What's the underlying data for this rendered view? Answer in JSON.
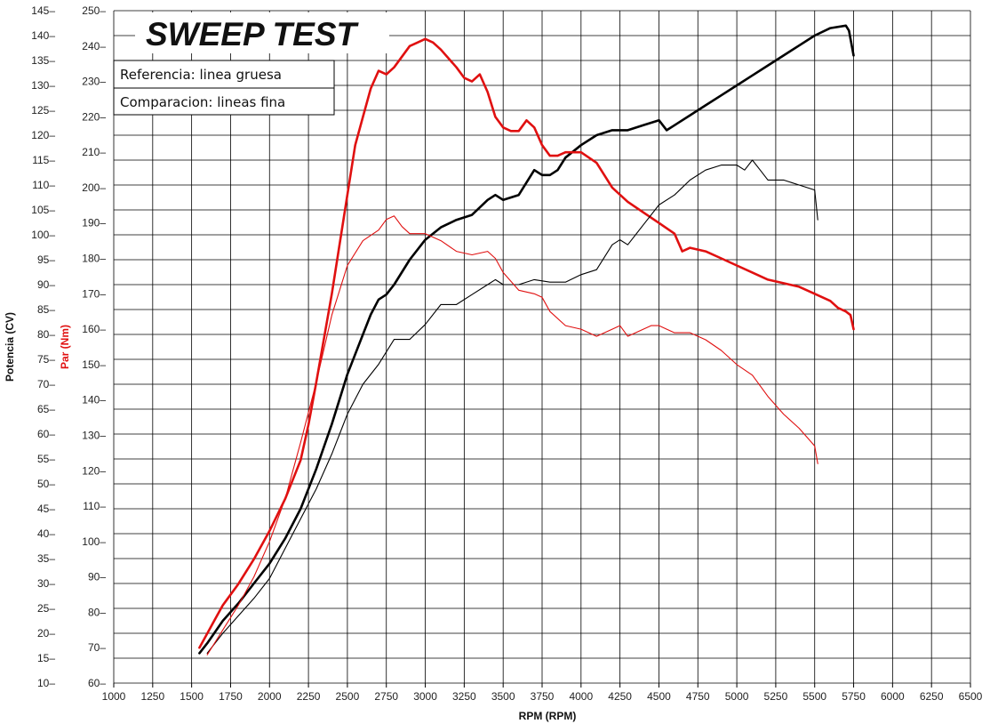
{
  "chart_data": {
    "type": "line",
    "title": "SWEEP TEST",
    "xlabel": "RPM (RPM)",
    "y_power_label": "Potencia (CV)",
    "y_torque_label": "Par (Nm)",
    "xlim": [
      1000,
      6500
    ],
    "x_ticks": [
      "1000",
      "1250",
      "1500",
      "1750",
      "2000",
      "2250",
      "2500",
      "2750",
      "3000",
      "3250",
      "3500",
      "3750",
      "4000",
      "4250",
      "4500",
      "4750",
      "5000",
      "5250",
      "5500",
      "5750",
      "6000",
      "6250",
      "6500"
    ],
    "y_power_lim": [
      10,
      145
    ],
    "y_power_ticks": [
      "10",
      "15",
      "20",
      "25",
      "30",
      "35",
      "40",
      "45",
      "50",
      "55",
      "60",
      "65",
      "70",
      "75",
      "80",
      "85",
      "90",
      "95",
      "100",
      "105",
      "110",
      "115",
      "120",
      "125",
      "130",
      "135",
      "140",
      "145"
    ],
    "y_torque_lim": [
      60,
      250
    ],
    "y_torque_ticks": [
      "60",
      "70",
      "80",
      "90",
      "100",
      "110",
      "120",
      "130",
      "140",
      "150",
      "160",
      "170",
      "180",
      "190",
      "200",
      "210",
      "220",
      "230",
      "240",
      "250"
    ],
    "legend": [
      "Referencia: linea gruesa",
      "Comparacion: lineas fina"
    ],
    "grid": true,
    "colors": {
      "power": "#000000",
      "torque": "#e01010",
      "grid": "#000000"
    },
    "series": [
      {
        "name": "Referencia: linea gruesa",
        "quantity": "power",
        "axis": "power",
        "weight": "thick",
        "x": [
          1550,
          1600,
          1700,
          1800,
          1900,
          2000,
          2100,
          2200,
          2300,
          2400,
          2500,
          2600,
          2650,
          2700,
          2750,
          2800,
          2900,
          3000,
          3100,
          3200,
          3300,
          3400,
          3450,
          3500,
          3600,
          3700,
          3750,
          3800,
          3850,
          3900,
          4000,
          4100,
          4200,
          4300,
          4400,
          4500,
          4550,
          4600,
          4700,
          4800,
          4900,
          5000,
          5100,
          5200,
          5300,
          5400,
          5500,
          5600,
          5700,
          5720,
          5750
        ],
        "y": [
          16,
          18,
          22.5,
          26,
          30,
          34,
          39,
          45,
          53,
          62,
          72,
          80,
          84,
          87,
          88,
          90,
          95,
          99,
          101.5,
          103,
          104,
          107,
          108,
          107,
          108,
          113,
          112,
          112,
          113,
          115.5,
          118,
          120,
          121,
          121,
          122,
          123,
          121,
          122,
          124,
          126,
          128,
          130,
          132,
          134,
          136,
          138,
          140,
          141.5,
          142,
          141,
          136
        ]
      },
      {
        "name": "Referencia: linea gruesa",
        "quantity": "torque",
        "axis": "torque",
        "weight": "thick",
        "x": [
          1550,
          1600,
          1650,
          1700,
          1800,
          1900,
          2000,
          2100,
          2200,
          2250,
          2300,
          2400,
          2500,
          2550,
          2600,
          2650,
          2700,
          2750,
          2800,
          2850,
          2900,
          2950,
          3000,
          3050,
          3100,
          3200,
          3250,
          3300,
          3350,
          3400,
          3450,
          3500,
          3550,
          3600,
          3650,
          3700,
          3750,
          3800,
          3850,
          3900,
          4000,
          4100,
          4200,
          4300,
          4400,
          4500,
          4600,
          4650,
          4700,
          4800,
          4900,
          5000,
          5100,
          5200,
          5300,
          5400,
          5500,
          5600,
          5650,
          5700,
          5730,
          5750
        ],
        "y": [
          70,
          74,
          78,
          82,
          88,
          95,
          103,
          112,
          123,
          133,
          145,
          170,
          198,
          212,
          220,
          228,
          233,
          232,
          234,
          237,
          240,
          241,
          242,
          241,
          239,
          234,
          231,
          230,
          232,
          227,
          220,
          217,
          216,
          216,
          219,
          217,
          212,
          209,
          209,
          210,
          210,
          207,
          200,
          196,
          193,
          190,
          187,
          182,
          183,
          182,
          180,
          178,
          176,
          174,
          173,
          172,
          170,
          168,
          166,
          165,
          164,
          160
        ]
      },
      {
        "name": "Comparacion: lineas fina",
        "quantity": "power",
        "axis": "power",
        "weight": "thin",
        "x": [
          1600,
          1700,
          1800,
          1900,
          2000,
          2100,
          2200,
          2300,
          2400,
          2500,
          2600,
          2700,
          2800,
          2900,
          3000,
          3100,
          3200,
          3300,
          3400,
          3450,
          3500,
          3600,
          3700,
          3800,
          3900,
          4000,
          4100,
          4200,
          4250,
          4300,
          4400,
          4500,
          4600,
          4700,
          4800,
          4900,
          5000,
          5050,
          5100,
          5150,
          5200,
          5250,
          5300,
          5400,
          5500,
          5520
        ],
        "y": [
          16,
          20,
          23.5,
          27,
          31,
          37,
          43,
          49,
          56,
          64,
          70,
          74,
          79,
          79,
          82,
          86,
          86,
          88,
          90,
          91,
          90,
          90,
          91,
          90.5,
          90.5,
          92,
          93,
          98,
          99,
          98,
          102,
          106,
          108,
          111,
          113,
          114,
          114,
          113,
          115,
          113,
          111,
          111,
          111,
          110,
          109,
          103
        ]
      },
      {
        "name": "Comparacion: lineas fina",
        "quantity": "torque",
        "axis": "torque",
        "weight": "thin",
        "x": [
          1600,
          1700,
          1800,
          1900,
          2000,
          2100,
          2200,
          2300,
          2400,
          2500,
          2600,
          2700,
          2750,
          2800,
          2850,
          2900,
          3000,
          3100,
          3200,
          3300,
          3400,
          3450,
          3500,
          3600,
          3700,
          3750,
          3800,
          3900,
          4000,
          4100,
          4200,
          4250,
          4300,
          4400,
          4450,
          4500,
          4550,
          4600,
          4700,
          4800,
          4900,
          5000,
          5100,
          5200,
          5300,
          5400,
          5500,
          5520
        ],
        "y": [
          68,
          75,
          82,
          90,
          100,
          112,
          128,
          145,
          164,
          178,
          185,
          188,
          191,
          192,
          189,
          187,
          187,
          185,
          182,
          181,
          182,
          180,
          176,
          171,
          170,
          169,
          165,
          161,
          160,
          158,
          160,
          161,
          158,
          160,
          161,
          161,
          160,
          159,
          159,
          157,
          154,
          150,
          147,
          141,
          136,
          132,
          127,
          122
        ]
      }
    ]
  }
}
